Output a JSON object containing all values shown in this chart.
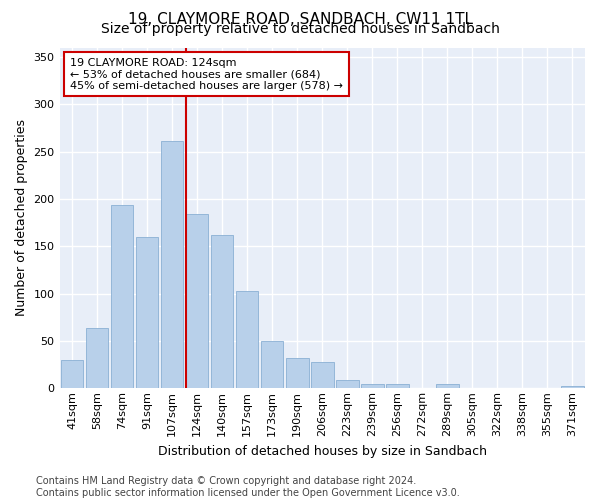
{
  "title1": "19, CLAYMORE ROAD, SANDBACH, CW11 1TL",
  "title2": "Size of property relative to detached houses in Sandbach",
  "xlabel": "Distribution of detached houses by size in Sandbach",
  "ylabel": "Number of detached properties",
  "categories": [
    "41sqm",
    "58sqm",
    "74sqm",
    "91sqm",
    "107sqm",
    "124sqm",
    "140sqm",
    "157sqm",
    "173sqm",
    "190sqm",
    "206sqm",
    "223sqm",
    "239sqm",
    "256sqm",
    "272sqm",
    "289sqm",
    "305sqm",
    "322sqm",
    "338sqm",
    "355sqm",
    "371sqm"
  ],
  "values": [
    30,
    64,
    194,
    160,
    261,
    184,
    162,
    103,
    50,
    32,
    28,
    9,
    4,
    5,
    0,
    5,
    0,
    0,
    0,
    0,
    2
  ],
  "bar_color": "#b8d0ea",
  "bar_edge_color": "#8ab0d4",
  "highlight_index": 5,
  "highlight_line_color": "#cc0000",
  "annotation_line1": "19 CLAYMORE ROAD: 124sqm",
  "annotation_line2": "← 53% of detached houses are smaller (684)",
  "annotation_line3": "45% of semi-detached houses are larger (578) →",
  "annotation_box_color": "#ffffff",
  "annotation_box_edge_color": "#cc0000",
  "ylim": [
    0,
    360
  ],
  "yticks": [
    0,
    50,
    100,
    150,
    200,
    250,
    300,
    350
  ],
  "bg_color": "#e8eef8",
  "grid_color": "#ffffff",
  "footer": "Contains HM Land Registry data © Crown copyright and database right 2024.\nContains public sector information licensed under the Open Government Licence v3.0.",
  "title1_fontsize": 11,
  "title2_fontsize": 10,
  "xlabel_fontsize": 9,
  "ylabel_fontsize": 9,
  "tick_fontsize": 8,
  "annotation_fontsize": 8,
  "footer_fontsize": 7
}
